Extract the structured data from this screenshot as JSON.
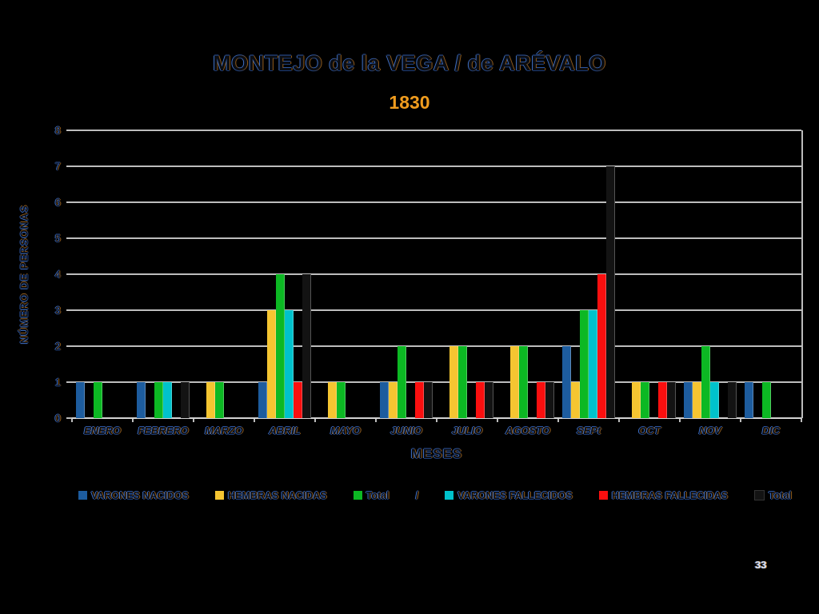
{
  "page": {
    "page_number": "33"
  },
  "styles": {
    "background": "#000000",
    "grid_color": "#bdbdbd",
    "subtitle_color": "#f09c1e",
    "text_outline_blue": "#3e6fc4",
    "text_outline_orange": "#8f5a1a"
  },
  "chart_data": {
    "type": "bar",
    "title": "MONTEJO de la VEGA / de ARÉVALO",
    "subtitle": "1830",
    "xlabel": "MESES",
    "ylabel": "NÚMERO DE PERSONAS",
    "ylim": [
      0,
      8
    ],
    "ytick_step": 1,
    "grid": true,
    "legend_position": "bottom",
    "legend_separator": "/",
    "categories": [
      "ENERO",
      "FEBRERO",
      "MARZO",
      "ABRIL",
      "MAYO",
      "JUNIO",
      "JULIO",
      "AGOSTO",
      "SEPt",
      "OCT",
      "NOV",
      "DIC"
    ],
    "series": [
      {
        "name": "VARONES NACIDOS",
        "color": "#1d5c9e",
        "values": [
          1,
          1,
          0,
          1,
          0,
          1,
          0,
          0,
          2,
          0,
          1,
          1
        ]
      },
      {
        "name": "HEMBRAS NACIDAS",
        "color": "#f5c531",
        "values": [
          0,
          0,
          1,
          3,
          1,
          1,
          2,
          2,
          1,
          1,
          1,
          0
        ]
      },
      {
        "name": "Total",
        "color": "#0cb823",
        "values": [
          1,
          1,
          1,
          4,
          1,
          2,
          2,
          2,
          3,
          1,
          2,
          1
        ]
      },
      {
        "name": "VARONES FALLECIDOS",
        "color": "#00c2cc",
        "values": [
          0,
          1,
          0,
          3,
          0,
          0,
          0,
          0,
          3,
          0,
          1,
          0
        ]
      },
      {
        "name": "HEMBRAS FALLECIDAS",
        "color": "#fa0f0f",
        "values": [
          0,
          0,
          0,
          1,
          0,
          1,
          1,
          1,
          4,
          1,
          0,
          0
        ]
      },
      {
        "name": "Total",
        "color": "#131313",
        "values": [
          0,
          1,
          0,
          4,
          0,
          1,
          1,
          1,
          7,
          1,
          1,
          0
        ]
      }
    ]
  }
}
